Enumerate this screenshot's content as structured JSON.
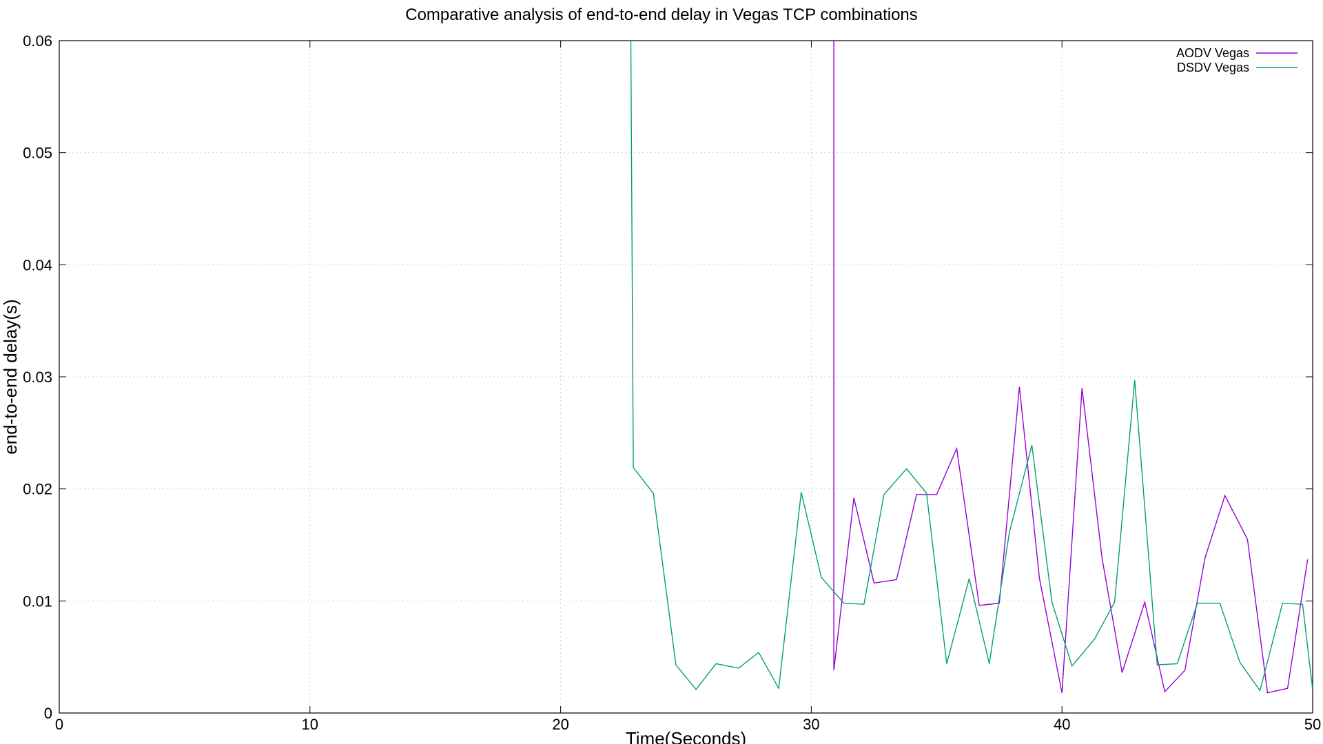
{
  "chart_data": {
    "type": "line",
    "title": "Comparative analysis of end-to-end delay in Vegas TCP combinations",
    "xlabel": "Time(Seconds)",
    "ylabel": "end-to-end delay(s)",
    "xlim": [
      0,
      50
    ],
    "ylim": [
      0,
      0.06
    ],
    "xticks": [
      0,
      10,
      20,
      30,
      40,
      50
    ],
    "xtick_labels": [
      "0",
      "10",
      "20",
      "30",
      "40",
      "50"
    ],
    "yticks": [
      0,
      0.01,
      0.02,
      0.03,
      0.04,
      0.05,
      0.06
    ],
    "ytick_labels": [
      "0",
      "0.01",
      "0.02",
      "0.03",
      "0.04",
      "0.05",
      "0.06"
    ],
    "grid": true,
    "legend_position": "top-right",
    "series": [
      {
        "name": "AODV Vegas",
        "color": "#9400d3",
        "x": [
          30.9,
          30.9,
          31.7,
          32.5,
          33.4,
          34.2,
          35.0,
          35.8,
          36.7,
          37.5,
          38.3,
          39.1,
          40.0,
          40.8,
          41.6,
          42.4,
          43.3,
          44.1,
          44.9,
          45.7,
          46.5,
          47.4,
          48.2,
          49.0,
          49.8
        ],
        "values": [
          0.06,
          0.0038,
          0.0192,
          0.0116,
          0.0119,
          0.0195,
          0.0195,
          0.0236,
          0.0096,
          0.0098,
          0.0291,
          0.012,
          0.0018,
          0.029,
          0.0138,
          0.0036,
          0.0099,
          0.0019,
          0.0038,
          0.0138,
          0.0194,
          0.0155,
          0.0018,
          0.0022,
          0.0137
        ]
      },
      {
        "name": "DSDV Vegas",
        "color": "#009e73",
        "x": [
          22.8,
          22.9,
          23.7,
          24.6,
          25.4,
          26.2,
          27.1,
          27.9,
          28.7,
          29.6,
          30.4,
          31.3,
          32.1,
          32.9,
          33.8,
          34.6,
          35.4,
          36.3,
          37.1,
          37.9,
          38.8,
          39.6,
          40.4,
          41.3,
          42.1,
          42.9,
          43.8,
          44.6,
          45.4,
          46.3,
          47.1,
          47.9,
          48.8,
          49.6,
          50.0
        ],
        "values": [
          0.06,
          0.0219,
          0.0196,
          0.0043,
          0.0021,
          0.0044,
          0.004,
          0.0054,
          0.0022,
          0.0197,
          0.0121,
          0.0098,
          0.0097,
          0.0195,
          0.0218,
          0.0196,
          0.0044,
          0.012,
          0.0044,
          0.0161,
          0.0239,
          0.0099,
          0.0042,
          0.0066,
          0.0099,
          0.0297,
          0.0043,
          0.0044,
          0.0098,
          0.0098,
          0.0045,
          0.002,
          0.0098,
          0.0097,
          0.0021
        ]
      }
    ]
  }
}
